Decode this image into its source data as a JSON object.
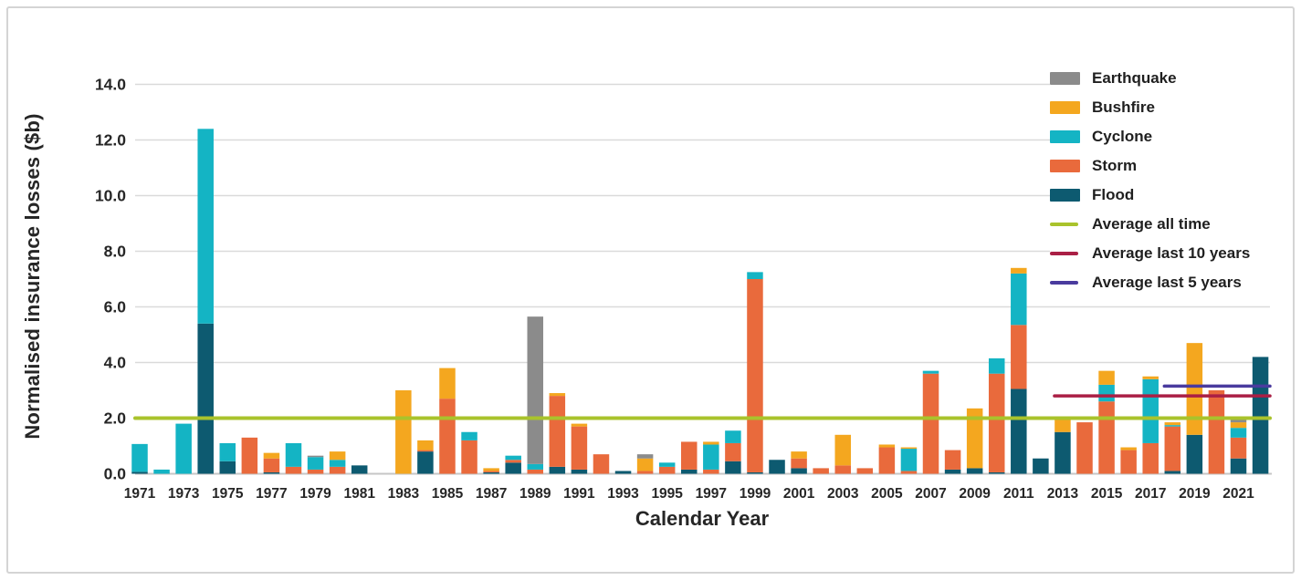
{
  "chart_data": {
    "type": "bar",
    "stacked": true,
    "xlabel": "Calendar Year",
    "ylabel": "Normalised insurance losses ($b)",
    "ylim": [
      0,
      14
    ],
    "ytick_step": 2,
    "ytick_labels": [
      "0.0",
      "2.0",
      "4.0",
      "6.0",
      "8.0",
      "10.0",
      "12.0",
      "14.0"
    ],
    "xtick_labels": [
      "1971",
      "1973",
      "1975",
      "1977",
      "1979",
      "1981",
      "1983",
      "1985",
      "1987",
      "1989",
      "1991",
      "1993",
      "1995",
      "1997",
      "1999",
      "2001",
      "2003",
      "2005",
      "2007",
      "2009",
      "2011",
      "2013",
      "2015",
      "2017",
      "2019",
      "2021"
    ],
    "year_start": 1971,
    "year_end": 2022,
    "grid": true,
    "legend_position": "top-right",
    "stack_order_bottom_to_top": [
      "Flood",
      "Storm",
      "Cyclone",
      "Bushfire",
      "Earthquake"
    ],
    "series": [
      {
        "name": "Earthquake",
        "color": "#8b8b8b",
        "values": [
          0,
          0,
          0,
          0,
          0,
          0,
          0,
          0,
          0.05,
          0,
          0,
          0,
          0,
          0,
          0,
          0,
          0,
          0,
          5.3,
          0,
          0,
          0,
          0,
          0.15,
          0,
          0,
          0,
          0,
          0,
          0,
          0,
          0,
          0,
          0,
          0,
          0,
          0,
          0,
          0,
          0,
          0,
          0,
          0,
          0,
          0,
          0,
          0,
          0,
          0,
          0,
          0.1,
          0
        ]
      },
      {
        "name": "Bushfire",
        "color": "#f4a71f",
        "values": [
          0,
          0,
          0,
          0,
          0,
          0,
          0.2,
          0,
          0,
          0.3,
          0,
          0,
          3.0,
          0.35,
          1.1,
          0,
          0.1,
          0,
          0,
          0.1,
          0.1,
          0,
          0,
          0.45,
          0,
          0,
          0.1,
          0,
          0,
          0,
          0.25,
          0,
          1.1,
          0,
          0.1,
          0.05,
          0,
          0,
          2.15,
          0,
          0.2,
          0,
          0.5,
          0,
          0.5,
          0.1,
          0.1,
          0.1,
          3.3,
          0,
          0.2,
          0
        ]
      },
      {
        "name": "Cyclone",
        "color": "#14b4c4",
        "values": [
          1.0,
          0.15,
          1.8,
          7.0,
          0.65,
          0,
          0,
          0.85,
          0.45,
          0.25,
          0,
          0,
          0,
          0,
          0,
          0.3,
          0,
          0.15,
          0.2,
          0,
          0,
          0,
          0,
          0,
          0.15,
          0,
          0.9,
          0.45,
          0.25,
          0,
          0,
          0,
          0,
          0,
          0,
          0.8,
          0.1,
          0,
          0,
          0.55,
          1.85,
          0,
          0,
          0,
          0.6,
          0,
          2.3,
          0.05,
          0,
          0,
          0.35,
          0
        ]
      },
      {
        "name": "Storm",
        "color": "#e96a3c",
        "values": [
          0,
          0,
          0,
          0,
          0,
          1.3,
          0.5,
          0.25,
          0.15,
          0.25,
          0,
          0,
          0,
          0.05,
          2.7,
          1.2,
          0.05,
          0.1,
          0.15,
          2.55,
          1.55,
          0.7,
          0,
          0.1,
          0.25,
          1.0,
          0.15,
          0.65,
          6.95,
          0,
          0.35,
          0.2,
          0.3,
          0.2,
          0.95,
          0.1,
          3.6,
          0.7,
          0,
          3.55,
          2.3,
          0,
          0,
          1.85,
          2.6,
          0.85,
          1.1,
          1.6,
          0,
          3.0,
          0.75,
          0
        ]
      },
      {
        "name": "Flood",
        "color": "#0d5a70",
        "values": [
          0.07,
          0,
          0,
          5.4,
          0.45,
          0,
          0.05,
          0,
          0,
          0,
          0.3,
          0,
          0,
          0.8,
          0,
          0,
          0.05,
          0.4,
          0,
          0.25,
          0.15,
          0,
          0.1,
          0,
          0,
          0.15,
          0,
          0.45,
          0.05,
          0.5,
          0.2,
          0,
          0,
          0,
          0,
          0,
          0,
          0.15,
          0.2,
          0.05,
          3.05,
          0.55,
          1.5,
          0,
          0,
          0,
          0,
          0.1,
          1.4,
          0,
          0.55,
          4.2
        ]
      }
    ],
    "reference_lines": [
      {
        "label": "Average all time",
        "color": "#a9c32c",
        "value": 2.0,
        "start_year": 1971,
        "end_year": 2022
      },
      {
        "label": "Average last 10 years",
        "color": "#aa1f45",
        "value": 2.8,
        "start_year": 2013,
        "end_year": 2022
      },
      {
        "label": "Average last 5 years",
        "color": "#4a3b9e",
        "value": 3.15,
        "start_year": 2018,
        "end_year": 2022
      }
    ],
    "legend": [
      {
        "label": "Earthquake",
        "color": "#8b8b8b",
        "swatch": "box"
      },
      {
        "label": "Bushfire",
        "color": "#f4a71f",
        "swatch": "box"
      },
      {
        "label": "Cyclone",
        "color": "#14b4c4",
        "swatch": "box"
      },
      {
        "label": "Storm",
        "color": "#e96a3c",
        "swatch": "box"
      },
      {
        "label": "Flood",
        "color": "#0d5a70",
        "swatch": "box"
      },
      {
        "label": "Average all time",
        "color": "#a9c32c",
        "swatch": "line"
      },
      {
        "label": "Average last 10 years",
        "color": "#aa1f45",
        "swatch": "line"
      },
      {
        "label": "Average last 5 years",
        "color": "#4a3b9e",
        "swatch": "line"
      }
    ]
  }
}
